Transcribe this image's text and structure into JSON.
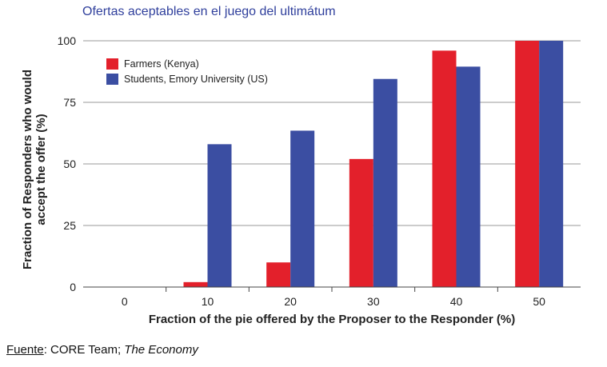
{
  "title": "Ofertas aceptables en el juego del ultimátum",
  "source": {
    "label": "Fuente",
    "sep": ": ",
    "text": "CORE Team; ",
    "work": "The Economy"
  },
  "chart_data": {
    "type": "bar",
    "categories": [
      "0",
      "10",
      "20",
      "30",
      "40",
      "50"
    ],
    "series": [
      {
        "name": "Farmers (Kenya)",
        "color": "#e3202b",
        "values": [
          0,
          2,
          10,
          52,
          96,
          100
        ]
      },
      {
        "name": "Students, Emory University (US)",
        "color": "#3b4ea2",
        "values": [
          0,
          58,
          63.5,
          84.5,
          89.5,
          100
        ]
      }
    ],
    "xlabel": "Fraction of the pie offered by the Proposer to the Responder (%)",
    "ylabel": [
      "Fraction of Responders who would",
      "accept the offer (%)"
    ],
    "yticks": [
      0,
      25,
      50,
      75,
      100
    ],
    "ylim": [
      0,
      100
    ],
    "grid": true,
    "legend": "top-left"
  }
}
